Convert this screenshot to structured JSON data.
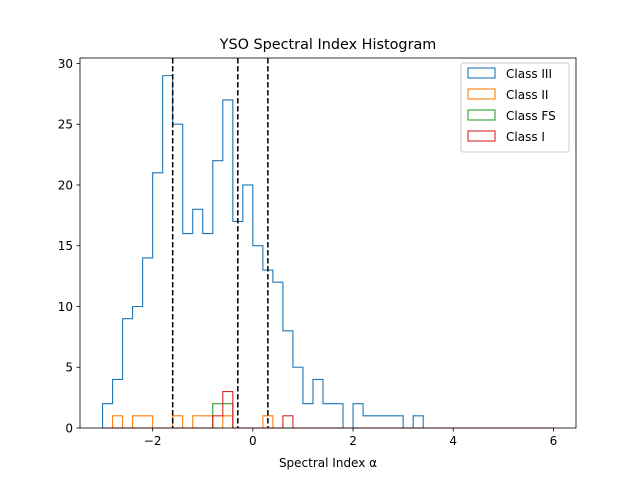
{
  "chart_data": {
    "type": "histogram",
    "title": "YSO Spectral Index Histogram",
    "xlabel": "Spectral Index α",
    "ylabel": "",
    "xlim": [
      -3.45,
      6.45
    ],
    "ylim": [
      0,
      30.45
    ],
    "xticks": [
      -2,
      0,
      2,
      4,
      6
    ],
    "xtick_labels": [
      "−2",
      "0",
      "2",
      "4",
      "6"
    ],
    "yticks": [
      0,
      5,
      10,
      15,
      20,
      25,
      30
    ],
    "ytick_labels": [
      "0",
      "5",
      "10",
      "15",
      "20",
      "25",
      "30"
    ],
    "grid": false,
    "legend_location": "upper right",
    "bin_start": -3.0,
    "bin_width": 0.2,
    "series": [
      {
        "name": "Class III",
        "color": "#1f77b4",
        "counts": [
          2,
          4,
          9,
          10,
          14,
          21,
          29,
          25,
          16,
          18,
          16,
          22,
          27,
          17,
          20,
          15,
          13,
          12,
          8,
          5,
          2,
          4,
          2,
          2,
          0,
          2,
          1,
          1,
          1,
          1,
          0,
          1,
          0,
          0,
          0,
          0,
          0,
          0,
          0,
          0,
          0,
          0,
          0,
          0,
          0
        ]
      },
      {
        "name": "Class II",
        "color": "#ff7f0e",
        "counts": [
          0,
          1,
          0,
          1,
          1,
          0,
          0,
          1,
          0,
          1,
          1,
          0,
          1,
          0,
          0,
          0,
          1,
          0,
          0,
          0,
          0,
          0,
          0,
          0,
          0,
          0,
          0,
          0,
          0,
          0,
          0,
          0,
          0,
          0,
          0,
          0,
          0,
          0,
          0,
          0,
          0,
          0,
          0,
          0,
          0
        ]
      },
      {
        "name": "Class FS",
        "color": "#2ca02c",
        "counts": [
          0,
          0,
          0,
          0,
          0,
          0,
          0,
          0,
          0,
          0,
          0,
          2,
          2,
          0,
          0,
          0,
          0,
          0,
          0,
          0,
          0,
          0,
          0,
          0,
          0,
          0,
          0,
          0,
          0,
          0,
          0,
          0,
          0,
          0,
          0,
          0,
          0,
          0,
          0,
          0,
          0,
          0,
          0,
          0,
          0
        ]
      },
      {
        "name": "Class I",
        "color": "#d62728",
        "counts": [
          0,
          0,
          0,
          0,
          0,
          0,
          0,
          0,
          0,
          0,
          0,
          1,
          3,
          0,
          0,
          0,
          0,
          0,
          1,
          0,
          0,
          0,
          0,
          0,
          0,
          0,
          0,
          0,
          0,
          0,
          0,
          0,
          0,
          0,
          0,
          0,
          0,
          0,
          0,
          0,
          0,
          0,
          0,
          0,
          0
        ]
      }
    ],
    "vlines": [
      {
        "x": -1.6,
        "style": "dashed",
        "color": "#000000"
      },
      {
        "x": -0.3,
        "style": "dashed",
        "color": "#000000"
      },
      {
        "x": 0.3,
        "style": "dashed",
        "color": "#000000"
      }
    ]
  }
}
